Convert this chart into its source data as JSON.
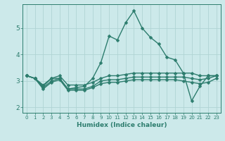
{
  "title": "",
  "xlabel": "Humidex (Indice chaleur)",
  "ylabel": "",
  "background_color": "#cce9ea",
  "grid_color": "#b0d4d4",
  "line_color": "#2d7d6e",
  "xlim": [
    -0.5,
    23.5
  ],
  "ylim": [
    1.8,
    5.9
  ],
  "x_ticks": [
    0,
    1,
    2,
    3,
    4,
    5,
    6,
    7,
    8,
    9,
    10,
    11,
    12,
    13,
    14,
    15,
    16,
    17,
    18,
    19,
    20,
    21,
    22,
    23
  ],
  "y_ticks": [
    2,
    3,
    4,
    5
  ],
  "series": [
    [
      3.2,
      3.1,
      2.8,
      3.1,
      3.1,
      2.7,
      2.75,
      2.8,
      3.1,
      3.7,
      4.7,
      4.55,
      5.2,
      5.65,
      5.0,
      4.65,
      4.4,
      3.9,
      3.8,
      3.3,
      2.25,
      2.8,
      3.2,
      3.2
    ],
    [
      3.2,
      3.1,
      2.85,
      3.1,
      3.2,
      2.85,
      2.85,
      2.85,
      2.95,
      3.1,
      3.2,
      3.2,
      3.25,
      3.3,
      3.3,
      3.3,
      3.3,
      3.3,
      3.3,
      3.3,
      3.3,
      3.2,
      3.2,
      3.2
    ],
    [
      3.2,
      3.1,
      2.75,
      3.0,
      3.1,
      2.7,
      2.7,
      2.7,
      2.8,
      3.0,
      3.05,
      3.05,
      3.1,
      3.15,
      3.15,
      3.15,
      3.15,
      3.15,
      3.15,
      3.15,
      3.1,
      3.05,
      3.1,
      3.2
    ],
    [
      3.2,
      3.1,
      2.7,
      2.95,
      3.05,
      2.65,
      2.65,
      2.65,
      2.75,
      2.9,
      2.95,
      2.95,
      3.0,
      3.05,
      3.05,
      3.05,
      3.05,
      3.05,
      3.05,
      3.0,
      2.95,
      2.9,
      2.95,
      3.1
    ]
  ]
}
